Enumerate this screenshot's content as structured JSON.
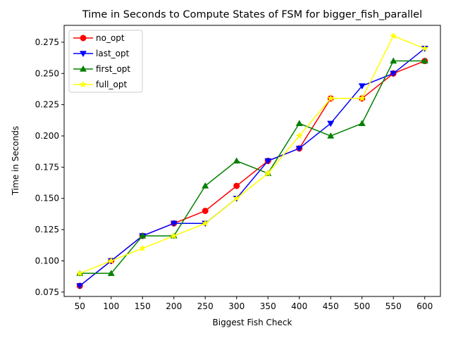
{
  "chart_data": {
    "type": "line",
    "title": "Time in Seconds to Compute States of FSM for bigger_fish_parallel",
    "xlabel": "Biggest Fish Check",
    "ylabel": "Time in Seconds",
    "x": [
      50,
      100,
      150,
      200,
      250,
      300,
      350,
      400,
      450,
      500,
      550,
      600
    ],
    "xlim": [
      25,
      625
    ],
    "ylim": [
      0.0715,
      0.2885
    ],
    "yticks": [
      0.075,
      0.1,
      0.125,
      0.15,
      0.175,
      0.2,
      0.225,
      0.25,
      0.275
    ],
    "ytick_labels": [
      "0.075",
      "0.100",
      "0.125",
      "0.150",
      "0.175",
      "0.200",
      "0.225",
      "0.250",
      "0.275"
    ],
    "xtick_labels": [
      "50",
      "100",
      "150",
      "200",
      "250",
      "300",
      "350",
      "400",
      "450",
      "500",
      "550",
      "600"
    ],
    "grid": false,
    "legend_position": "top-left",
    "series": [
      {
        "name": "no_opt",
        "color": "#ff0000",
        "marker": "circle",
        "values": [
          0.08,
          0.1,
          0.12,
          0.13,
          0.14,
          0.16,
          0.18,
          0.19,
          0.23,
          0.23,
          0.25,
          0.26
        ]
      },
      {
        "name": "last_opt",
        "color": "#0000ff",
        "marker": "triangle-down",
        "values": [
          0.08,
          0.1,
          0.12,
          0.13,
          0.13,
          0.15,
          0.18,
          0.19,
          0.21,
          0.24,
          0.25,
          0.27
        ]
      },
      {
        "name": "first_opt",
        "color": "#008000",
        "marker": "triangle-up",
        "values": [
          0.09,
          0.09,
          0.12,
          0.12,
          0.16,
          0.18,
          0.17,
          0.21,
          0.2,
          0.21,
          0.26,
          0.26
        ]
      },
      {
        "name": "full_opt",
        "color": "#ffff00",
        "marker": "star",
        "values": [
          0.09,
          0.1,
          0.11,
          0.12,
          0.13,
          0.15,
          0.17,
          0.2,
          0.23,
          0.23,
          0.28,
          0.27
        ]
      }
    ]
  }
}
